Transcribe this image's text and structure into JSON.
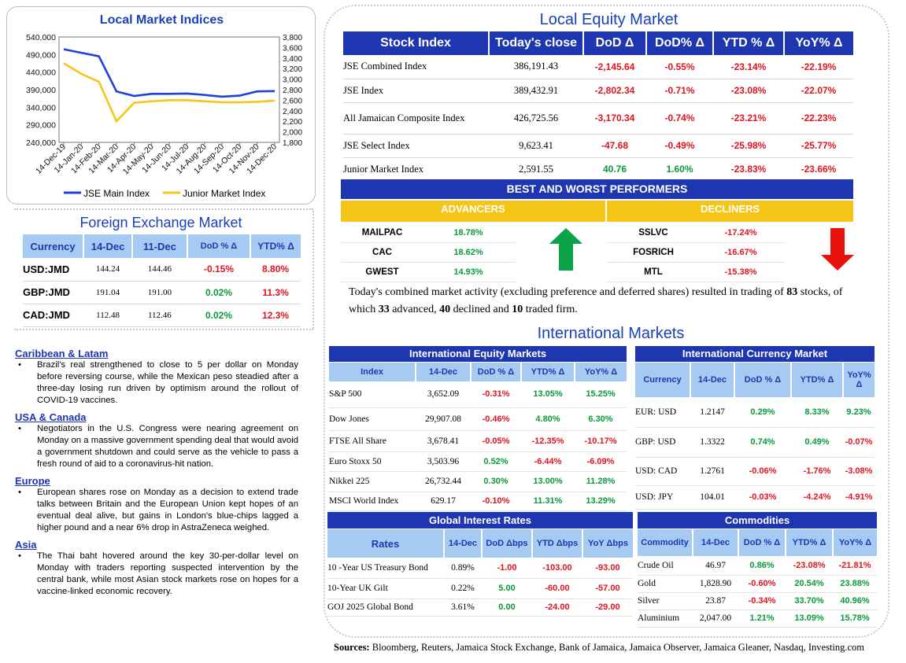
{
  "local_indices": {
    "title": "Local Market Indices",
    "chart_data": {
      "type": "line",
      "x": [
        "14-Dec-19",
        "14-Jan-20",
        "14-Feb-20",
        "14-Mar-20",
        "14-Apr-20",
        "14-May-20",
        "14-Jun-20",
        "14-Jul-20",
        "14-Aug-20",
        "14-Sep-20",
        "14-Oct-20",
        "14-Nov-20",
        "14-Dec-20"
      ],
      "series": [
        {
          "name": "JSE Main Index",
          "axis": "left",
          "color": "#1f3fe0",
          "values": [
            505000,
            495000,
            485000,
            385000,
            372000,
            378000,
            378000,
            379000,
            375000,
            370000,
            373000,
            385000,
            386000
          ]
        },
        {
          "name": "Junior Market Index",
          "axis": "right",
          "color": "#f5c518",
          "values": [
            3300,
            3100,
            2950,
            2200,
            2550,
            2580,
            2600,
            2600,
            2580,
            2560,
            2560,
            2570,
            2592
          ]
        }
      ],
      "ylim_left": [
        240000,
        540000
      ],
      "yticks_left": [
        "540,000",
        "490,000",
        "440,000",
        "390,000",
        "340,000",
        "290,000",
        "240,000"
      ],
      "ylim_right": [
        1800,
        3800
      ],
      "yticks_right": [
        "3,800",
        "3,600",
        "3,400",
        "3,200",
        "3,000",
        "2,800",
        "2,600",
        "2,400",
        "2,200",
        "2,000",
        "1,800"
      ]
    }
  },
  "fx": {
    "title": "Foreign Exchange Market",
    "headers": [
      "Currency",
      "14-Dec",
      "11-Dec",
      "DoD % Δ",
      "YTD% Δ"
    ],
    "rows": [
      {
        "cur": "USD:JMD",
        "d1": "144.24",
        "d2": "144.46",
        "dod": "-0.15%",
        "ytd": "8.80%"
      },
      {
        "cur": "GBP:JMD",
        "d1": "191.04",
        "d2": "191.00",
        "dod": "0.02%",
        "ytd": "11.3%"
      },
      {
        "cur": "CAD:JMD",
        "d1": "112.48",
        "d2": "112.46",
        "dod": "0.02%",
        "ytd": "12.3%"
      }
    ]
  },
  "news": [
    {
      "heading": "Caribbean & Latam",
      "text": "Brazil's real strengthened to close to 5 per dollar on Monday before reversing course, while the Mexican peso steadied after a three-day losing run driven by optimism around the rollout of COVID-19 vaccines."
    },
    {
      "heading": "USA & Canada",
      "text": "Negotiators in the U.S. Congress were nearing agreement on Monday on a massive government spending deal that would avoid a government shutdown and could serve as the vehicle to pass a fresh round of aid to a coronavirus-hit nation."
    },
    {
      "heading": "Europe",
      "text": "European shares rose on Monday as a decision to extend trade talks between Britain and the European Union kept hopes of an eventual deal alive, but gains in London's blue-chips lagged a higher pound and a near 6% drop in AstraZeneca weighed."
    },
    {
      "heading": "Asia",
      "text": "The Thai baht hovered around the key 30-per-dollar level on Monday with traders reporting suspected intervention by the central bank, while most Asian stock markets rose on hopes for a vaccine-linked economic recovery."
    }
  ],
  "equity": {
    "title": "Local Equity Market",
    "headers": [
      "Stock Index",
      "Today's close",
      "DoD  Δ",
      "DoD% Δ",
      "YTD % Δ",
      "YoY% Δ"
    ],
    "rows": [
      {
        "name": "JSE Combined Index",
        "close": "386,191.43",
        "dod": "-2,145.64",
        "dodp": "-0.55%",
        "ytd": "-23.14%",
        "yoy": "-22.19%"
      },
      {
        "name": "JSE Index",
        "close": "389,432.91",
        "dod": "-2,802.34",
        "dodp": "-0.71%",
        "ytd": "-23.08%",
        "yoy": "-22.07%"
      },
      {
        "name": "All Jamaican Composite Index",
        "close": "426,725.56",
        "dod": "-3,170.34",
        "dodp": "-0.74%",
        "ytd": "-23.21%",
        "yoy": "-22.23%"
      },
      {
        "name": "JSE Select Index",
        "close": "9,623.41",
        "dod": "-47.68",
        "dodp": "-0.49%",
        "ytd": "-25.98%",
        "yoy": "-25.77%"
      },
      {
        "name": "Junior Market Index",
        "close": "2,591.55",
        "dod": "40.76",
        "dodp": "1.60%",
        "ytd": "-23.83%",
        "yoy": "-23.66%"
      }
    ]
  },
  "performers": {
    "title": "BEST AND WORST PERFORMERS",
    "advancers_label": "ADVANCERS",
    "decliners_label": "DECLINERS",
    "advancers": [
      {
        "sym": "MAILPAC",
        "pct": "18.78%"
      },
      {
        "sym": "CAC",
        "pct": "18.62%"
      },
      {
        "sym": "GWEST",
        "pct": "14.93%"
      }
    ],
    "decliners": [
      {
        "sym": "SSLVC",
        "pct": "-17.24%"
      },
      {
        "sym": "FOSRICH",
        "pct": "-16.67%"
      },
      {
        "sym": "MTL",
        "pct": "-15.38%"
      }
    ]
  },
  "activity": {
    "p1": "Today's combined market activity (excluding preference and deferred shares) resulted in trading of ",
    "n1": "83",
    "p2": " stocks, of which ",
    "n2": "33",
    "p3": " advanced, ",
    "n3": "40",
    "p4": " declined and ",
    "n4": "10",
    "p5": " traded firm."
  },
  "intl_title": "International Markets",
  "intl_equity": {
    "title": "International Equity Markets",
    "headers": [
      "Index",
      "14-Dec",
      "DoD % Δ",
      "YTD% Δ",
      "YoY% Δ"
    ],
    "rows": [
      {
        "name": "S&P 500",
        "v": "3,652.09",
        "dod": "-0.31%",
        "ytd": "13.05%",
        "yoy": "15.25%"
      },
      {
        "name": "Dow Jones",
        "v": "29,907.08",
        "dod": "-0.46%",
        "ytd": "4.80%",
        "yoy": "6.30%"
      },
      {
        "name": "FTSE All Share",
        "v": "3,678.41",
        "dod": "-0.05%",
        "ytd": "-12.35%",
        "yoy": "-10.17%"
      },
      {
        "name": "Euro Stoxx 50",
        "v": "3,503.96",
        "dod": "0.52%",
        "ytd": "-6.44%",
        "yoy": "-6.09%"
      },
      {
        "name": "Nikkei 225",
        "v": "26,732.44",
        "dod": "0.30%",
        "ytd": "13.00%",
        "yoy": "11.28%"
      },
      {
        "name": "MSCI World Index",
        "v": "629.17",
        "dod": "-0.10%",
        "ytd": "11.31%",
        "yoy": "13.29%"
      }
    ]
  },
  "intl_currency": {
    "title": "International Currency Market",
    "headers": [
      "Currency",
      "14-Dec",
      "DoD % Δ",
      "YTD% Δ",
      "YoY% Δ"
    ],
    "rows": [
      {
        "name": "EUR: USD",
        "v": "1.2147",
        "dod": "0.29%",
        "ytd": "8.33%",
        "yoy": "9.23%"
      },
      {
        "name": "GBP: USD",
        "v": "1.3322",
        "dod": "0.74%",
        "ytd": "0.49%",
        "yoy": "-0.07%"
      },
      {
        "name": "USD: CAD",
        "v": "1.2761",
        "dod": "-0.06%",
        "ytd": "-1.76%",
        "yoy": "-3.08%"
      },
      {
        "name": "USD: JPY",
        "v": "104.01",
        "dod": "-0.03%",
        "ytd": "-4.24%",
        "yoy": "-4.91%"
      }
    ]
  },
  "rates": {
    "title": "Global Interest Rates",
    "headers": [
      "Rates",
      "14-Dec",
      "DoD Δbps",
      "YTD Δbps",
      "YoY Δbps"
    ],
    "rows": [
      {
        "name": "10 -Year US Treasury Bond",
        "v": "0.89%",
        "dod": "-1.00",
        "ytd": "-103.00",
        "yoy": "-93.00"
      },
      {
        "name": "10-Year UK Gilt",
        "v": "0.22%",
        "dod": "5.00",
        "ytd": "-60.00",
        "yoy": "-57.00"
      },
      {
        "name": "GOJ 2025 Global Bond",
        "v": "3.61%",
        "dod": "0.00",
        "ytd": "-24.00",
        "yoy": "-29.00"
      }
    ]
  },
  "commodities": {
    "title": "Commodities",
    "headers": [
      "Commodity",
      "14-Dec",
      "DoD % Δ",
      "YTD% Δ",
      "YoY% Δ"
    ],
    "rows": [
      {
        "name": "Crude Oil",
        "v": "46.97",
        "dod": "0.86%",
        "ytd": "-23.08%",
        "yoy": "-21.81%"
      },
      {
        "name": "Gold",
        "v": "1,828.90",
        "dod": "-0.60%",
        "ytd": "20.54%",
        "yoy": "23.88%"
      },
      {
        "name": "Silver",
        "v": "23.87",
        "dod": "-0.34%",
        "ytd": "33.70%",
        "yoy": "40.96%"
      },
      {
        "name": "Aluminium",
        "v": "2,047.00",
        "dod": "1.21%",
        "ytd": "13.09%",
        "yoy": "15.78%"
      }
    ]
  },
  "sources": {
    "label": "Sources:",
    "text": " Bloomberg, Reuters, Jamaica Stock Exchange, Bank of Jamaica, Jamaica Observer, Jamaica Gleaner, Nasdaq, Investing.com"
  },
  "colors": {
    "navy": "#1e36b0",
    "light_blue": "#a6cbf2",
    "gold": "#f5c518",
    "green": "#0a9a3b",
    "red": "#e0141e"
  }
}
